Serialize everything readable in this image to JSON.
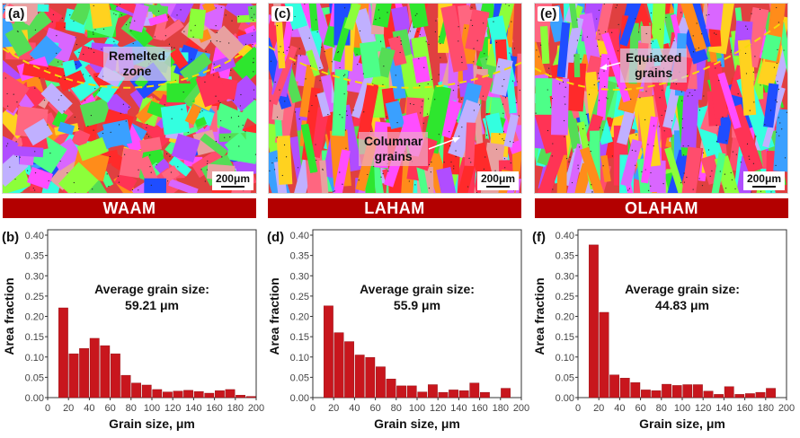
{
  "panels": [
    {
      "letter": "(a)",
      "method": "WAAM",
      "annotation": [
        "Remelted",
        "zone"
      ],
      "scale": "200μm"
    },
    {
      "letter": "(c)",
      "method": "LAHAM",
      "annotation": [
        "Columnar",
        "grains"
      ],
      "scale": "200μm"
    },
    {
      "letter": "(e)",
      "method": "OLAHAM",
      "annotation": [
        "Equiaxed",
        "grains"
      ],
      "scale": "200μm"
    }
  ],
  "colors": {
    "bar": "#c8161d",
    "method_bar": "#b30000",
    "boundary": "#f5d90a"
  },
  "chart_data": [
    {
      "type": "bar",
      "panel": "(b)",
      "title": "",
      "annotation": [
        "Average grain size:",
        "59.21 μm"
      ],
      "xlabel": "Grain size, μm",
      "ylabel": "Area fraction",
      "xlim": [
        0,
        200
      ],
      "ylim": [
        0,
        0.4
      ],
      "xticks": [
        "0",
        "20",
        "40",
        "60",
        "80",
        "100",
        "120",
        "140",
        "160",
        "180",
        "200"
      ],
      "yticks": [
        "0.00",
        "0.05",
        "0.10",
        "0.15",
        "0.20",
        "0.25",
        "0.30",
        "0.35",
        "0.40"
      ],
      "bin_width": 10,
      "x": [
        15,
        25,
        35,
        45,
        55,
        65,
        75,
        85,
        95,
        105,
        115,
        125,
        135,
        145,
        155,
        165,
        175,
        185,
        195
      ],
      "values": [
        0.221,
        0.108,
        0.121,
        0.146,
        0.128,
        0.108,
        0.055,
        0.036,
        0.031,
        0.02,
        0.014,
        0.016,
        0.018,
        0.015,
        0.011,
        0.017,
        0.02,
        0.006,
        0.003
      ]
    },
    {
      "type": "bar",
      "panel": "(d)",
      "title": "",
      "annotation": [
        "Average grain size:",
        "55.9 μm"
      ],
      "xlabel": "Grain size, μm",
      "ylabel": "Area fraction",
      "xlim": [
        0,
        200
      ],
      "ylim": [
        0,
        0.4
      ],
      "xticks": [
        "0",
        "20",
        "40",
        "60",
        "80",
        "100",
        "120",
        "140",
        "160",
        "180",
        "200"
      ],
      "yticks": [
        "0.00",
        "0.05",
        "0.10",
        "0.15",
        "0.20",
        "0.25",
        "0.30",
        "0.35",
        "0.40"
      ],
      "bin_width": 10,
      "x": [
        15,
        25,
        35,
        45,
        55,
        65,
        75,
        85,
        95,
        105,
        115,
        125,
        135,
        145,
        155,
        165,
        175,
        185
      ],
      "values": [
        0.226,
        0.16,
        0.138,
        0.105,
        0.099,
        0.076,
        0.046,
        0.029,
        0.029,
        0.014,
        0.032,
        0.013,
        0.019,
        0.017,
        0.036,
        0.013,
        0.0,
        0.023
      ]
    },
    {
      "type": "bar",
      "panel": "(f)",
      "title": "",
      "annotation": [
        "Average grain size:",
        "44.83 μm"
      ],
      "xlabel": "Grain size, μm",
      "ylabel": "Area fraction",
      "xlim": [
        0,
        200
      ],
      "ylim": [
        0,
        0.4
      ],
      "xticks": [
        "0",
        "20",
        "40",
        "60",
        "80",
        "100",
        "120",
        "140",
        "160",
        "180",
        "200"
      ],
      "yticks": [
        "0.00",
        "0.05",
        "0.10",
        "0.15",
        "0.20",
        "0.25",
        "0.30",
        "0.35",
        "0.40"
      ],
      "bin_width": 10,
      "x": [
        15,
        25,
        35,
        45,
        55,
        65,
        75,
        85,
        95,
        105,
        115,
        125,
        135,
        145,
        155,
        165,
        175,
        185
      ],
      "values": [
        0.376,
        0.21,
        0.056,
        0.048,
        0.037,
        0.019,
        0.017,
        0.033,
        0.03,
        0.032,
        0.032,
        0.016,
        0.008,
        0.027,
        0.008,
        0.01,
        0.013,
        0.023
      ]
    }
  ]
}
